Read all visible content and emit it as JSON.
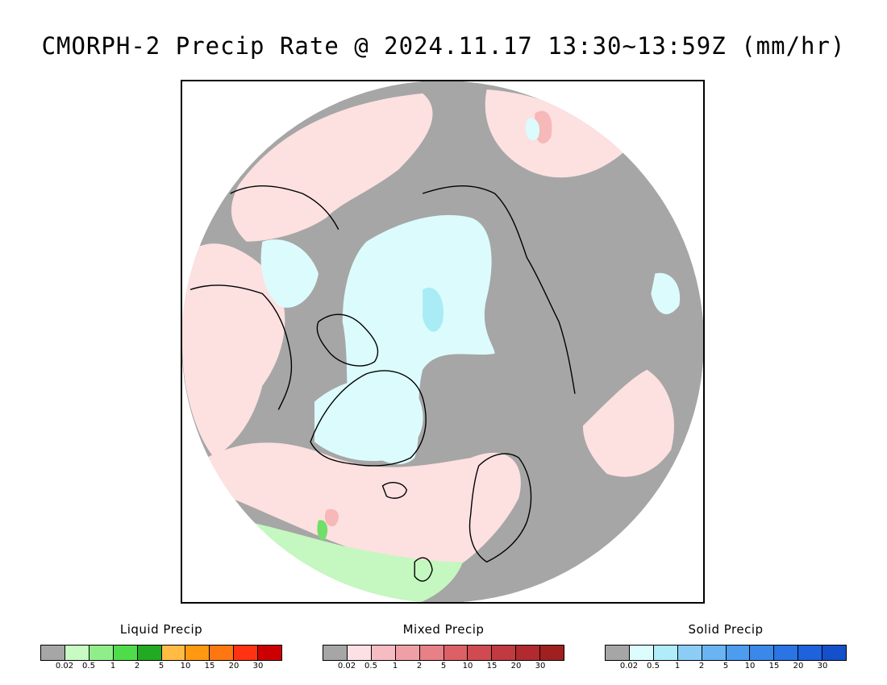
{
  "title": "CMORPH-2 Precip Rate @ 2024.11.17 13:30~13:59Z (mm/hr)",
  "map": {
    "projection": "north polar stereographic",
    "colors": {
      "no_precip": "#a6a6a6",
      "mixed_light": "#fde0e0",
      "mixed_mid": "#f6b8b8",
      "mixed_heavy": "#e88585",
      "solid_light": "#dcfbfd",
      "solid_mid": "#a9ecf5",
      "liquid_light": "#c5f7c0",
      "liquid_mid": "#6fdf6a",
      "coastline": "#000000"
    }
  },
  "legends": [
    {
      "title": "Liquid Precip",
      "colors": [
        "#a6a6a6",
        "#c8fac4",
        "#8fee8a",
        "#4fdc4a",
        "#22aa22",
        "#ffbb44",
        "#ff9911",
        "#ff7711",
        "#ff3311",
        "#cc0000"
      ],
      "ticks": [
        "0.02",
        "0.5",
        "1",
        "2",
        "5",
        "10",
        "15",
        "20",
        "30"
      ]
    },
    {
      "title": "Mixed Precip",
      "colors": [
        "#a6a6a6",
        "#fde0e4",
        "#f6bcc2",
        "#eea0a6",
        "#e88088",
        "#dd6066",
        "#d04a52",
        "#c03a40",
        "#b02a30",
        "#a02020"
      ],
      "ticks": [
        "0.02",
        "0.5",
        "1",
        "2",
        "5",
        "10",
        "15",
        "20",
        "30"
      ]
    },
    {
      "title": "Solid Precip",
      "colors": [
        "#a6a6a6",
        "#dcfcfe",
        "#b0ecfa",
        "#8ccdf8",
        "#6ab4f4",
        "#4c9cef",
        "#3a88ea",
        "#2a74e4",
        "#1e62dc",
        "#1450cc"
      ],
      "ticks": [
        "0.02",
        "0.5",
        "1",
        "2",
        "5",
        "10",
        "15",
        "20",
        "30"
      ]
    }
  ]
}
